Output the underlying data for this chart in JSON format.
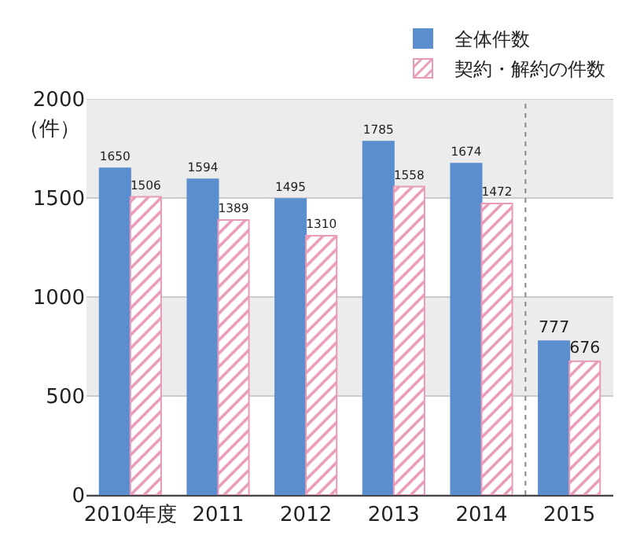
{
  "chart_data": {
    "type": "bar",
    "ylabel": "（件）",
    "categories": [
      "2010年度",
      "2011",
      "2012",
      "2013",
      "2014",
      "2015"
    ],
    "series": [
      {
        "name": "全体件数",
        "color": "#5b8ecf",
        "values": [
          1650,
          1594,
          1495,
          1785,
          1674,
          777
        ]
      },
      {
        "name": "契約・解約の件数",
        "color": "#e89ab8",
        "values": [
          1506,
          1389,
          1310,
          1558,
          1472,
          676
        ]
      }
    ],
    "ylim": [
      0,
      2000
    ],
    "yticks": [
      0,
      500,
      1000,
      1500,
      2000
    ],
    "grid": true,
    "data_labels": true,
    "legend": "top right"
  }
}
